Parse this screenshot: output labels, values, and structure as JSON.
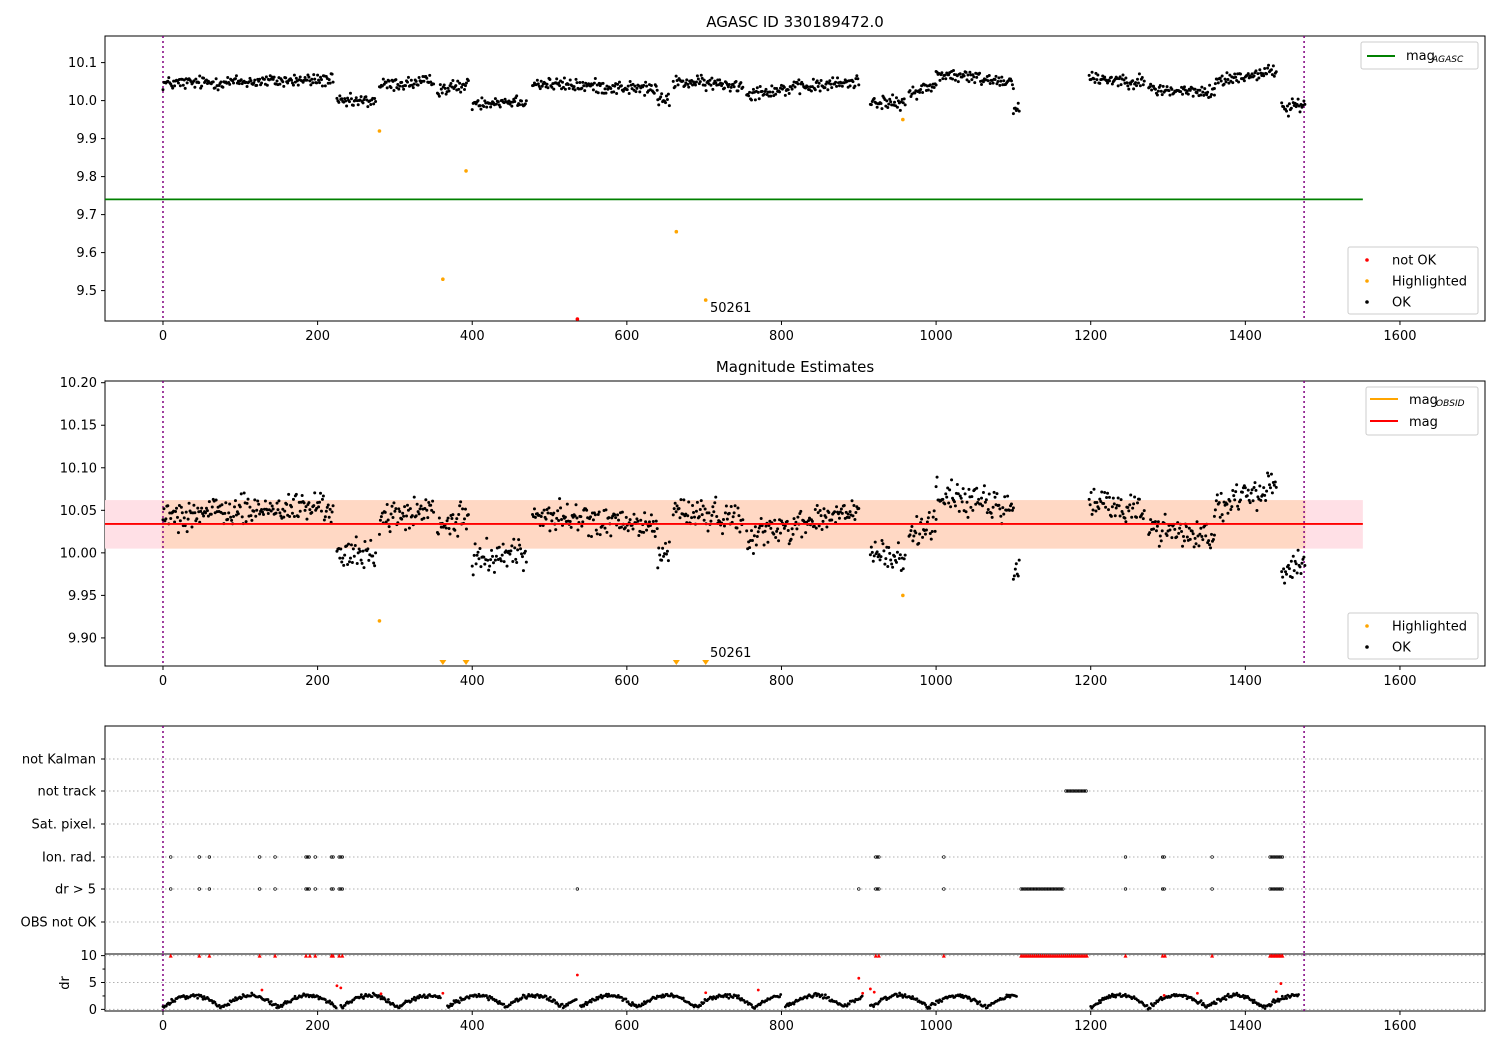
{
  "chart_data": [
    {
      "type": "scatter",
      "title": "AGASC ID 330189472.0",
      "xlim": [
        -75,
        1710
      ],
      "ylim": [
        9.42,
        10.17
      ],
      "xticks": [
        0,
        200,
        400,
        600,
        800,
        1000,
        1200,
        1400,
        1600
      ],
      "yticks": [
        9.5,
        9.6,
        9.7,
        9.8,
        9.9,
        10.0,
        10.1
      ],
      "ytick_labels": [
        "9.5",
        "9.6",
        "9.7",
        "9.8",
        "9.9",
        "10.0",
        "10.1"
      ],
      "vlines": [
        0,
        1476
      ],
      "annotation": {
        "text": "50261",
        "x": 705,
        "y": 9.455
      },
      "lines": [
        {
          "name": "mag_AGASC",
          "y": 9.74,
          "x": [
            -75,
            1552
          ],
          "color": "#008000"
        }
      ],
      "series": [
        {
          "name": "not OK",
          "color": "#ff0000",
          "points": [
            [
              536,
              9.425
            ]
          ]
        },
        {
          "name": "Highlighted",
          "color": "#ffa500",
          "points": [
            [
              280,
              9.92
            ],
            [
              362,
              9.53
            ],
            [
              392,
              9.815
            ],
            [
              664,
              9.655
            ],
            [
              702,
              9.475
            ],
            [
              957,
              9.95
            ]
          ]
        },
        {
          "name": "OK",
          "color": "#000000",
          "points": "generated"
        }
      ],
      "legends": [
        {
          "position": "top-right",
          "entries": [
            {
              "label": "mag",
              "sub": "AGASC",
              "kind": "line",
              "color": "#008000"
            }
          ]
        },
        {
          "position": "bottom-right",
          "entries": [
            {
              "label": "not OK",
              "kind": "dot",
              "color": "#ff0000"
            },
            {
              "label": "Highlighted",
              "kind": "dot",
              "color": "#ffa500"
            },
            {
              "label": "OK",
              "kind": "dot",
              "color": "#000000"
            }
          ]
        }
      ]
    },
    {
      "type": "scatter",
      "title": "Magnitude Estimates",
      "xlim": [
        -75,
        1710
      ],
      "ylim": [
        9.867,
        10.202
      ],
      "xticks": [
        0,
        200,
        400,
        600,
        800,
        1000,
        1200,
        1400,
        1600
      ],
      "yticks": [
        9.9,
        9.95,
        10.0,
        10.05,
        10.1,
        10.15,
        10.2
      ],
      "ytick_labels": [
        "9.90",
        "9.95",
        "10.00",
        "10.05",
        "10.10",
        "10.15",
        "10.20"
      ],
      "vlines": [
        0,
        1476
      ],
      "annotation": {
        "text": "50261",
        "x": 705,
        "y": 9.878
      },
      "band": {
        "y_low": 10.005,
        "y_high": 10.062,
        "x": [
          -75,
          1552
        ],
        "color_outer": "#ffe0e6",
        "color_inner": "#ffd8c4",
        "inner_x": [
          -2,
          1478
        ]
      },
      "lines": [
        {
          "name": "mag",
          "y": 10.034,
          "x": [
            -75,
            1552
          ],
          "color": "#ff0000"
        }
      ],
      "series": [
        {
          "name": "Highlighted",
          "color": "#ffa500",
          "points": [
            [
              280,
              9.92
            ],
            [
              957,
              9.95
            ]
          ]
        },
        {
          "name": "Highlighted (off-scale)",
          "color": "#ffa500",
          "marker": "triangle-down",
          "points": [
            [
              362,
              9.867
            ],
            [
              392,
              9.867
            ],
            [
              664,
              9.867
            ],
            [
              702,
              9.867
            ]
          ]
        },
        {
          "name": "OK",
          "color": "#000000",
          "points": "generated"
        }
      ],
      "legends": [
        {
          "position": "top-right",
          "entries": [
            {
              "label": "mag",
              "sub": "OBSID",
              "kind": "line",
              "color": "#ffa500"
            },
            {
              "label": "mag",
              "kind": "line",
              "color": "#ff0000"
            }
          ]
        },
        {
          "position": "bottom-right",
          "entries": [
            {
              "label": "Highlighted",
              "kind": "dot",
              "color": "#ffa500"
            },
            {
              "label": "OK",
              "kind": "dot",
              "color": "#000000"
            }
          ]
        }
      ]
    },
    {
      "type": "scatter",
      "title": "",
      "xlim": [
        -75,
        1710
      ],
      "vlines": [
        0,
        1476
      ],
      "categories": [
        "not Kalman",
        "not track",
        "Sat. pixel.",
        "Ion. rad.",
        "dr > 5",
        "OBS not OK"
      ],
      "flag_points": {
        "not Kalman": [],
        "not track": [
          [
            1168,
            1195
          ]
        ],
        "Sat. pixel.": [],
        "Ion. rad.": [
          [
            10
          ],
          [
            47
          ],
          [
            60
          ],
          [
            125
          ],
          [
            145
          ],
          [
            185,
            190
          ],
          [
            197
          ],
          [
            218,
            220
          ],
          [
            228,
            232
          ],
          [
            922,
            926
          ],
          [
            1010
          ],
          [
            1245
          ],
          [
            1293,
            1296
          ],
          [
            1357
          ],
          [
            1432,
            1448
          ]
        ],
        "dr > 5": [
          [
            10
          ],
          [
            47
          ],
          [
            60
          ],
          [
            125
          ],
          [
            145
          ],
          [
            185,
            190
          ],
          [
            197
          ],
          [
            218,
            220
          ],
          [
            228,
            232
          ],
          [
            536
          ],
          [
            900
          ],
          [
            922,
            926
          ],
          [
            1010
          ],
          [
            1110,
            1165
          ],
          [
            1245
          ],
          [
            1293,
            1296
          ],
          [
            1357
          ],
          [
            1432,
            1448
          ]
        ],
        "OBS not OK": []
      }
    },
    {
      "type": "scatter",
      "title": "",
      "ylabel": "dr",
      "xlim": [
        -75,
        1710
      ],
      "ylim": [
        -0.3,
        10.3
      ],
      "xticks": [
        0,
        200,
        400,
        600,
        800,
        1000,
        1200,
        1400,
        1600
      ],
      "yticks": [
        0,
        5,
        10
      ],
      "ytick_labels": [
        "0",
        "5",
        "10"
      ],
      "vlines": [
        0,
        1476
      ],
      "series": [
        {
          "name": "dr",
          "color": "#000000",
          "points": "generated"
        },
        {
          "name": "dr > 5 (capped)",
          "color": "#ff0000",
          "marker": "triangle",
          "x": [
            10,
            47,
            60,
            125,
            145,
            185,
            190,
            197,
            218,
            220,
            228,
            232,
            922,
            926,
            1010,
            1245,
            1293,
            1296,
            1357
          ]
        },
        {
          "name": "dr highlighted",
          "color": "#ff0000",
          "points": [
            [
              536,
              6.4
            ],
            [
              900,
              5.8
            ],
            [
              128,
              3.6
            ],
            [
              225,
              4.4
            ],
            [
              230,
              4.0
            ],
            [
              282,
              2.9
            ],
            [
              362,
              3.0
            ],
            [
              702,
              3.1
            ],
            [
              770,
              3.6
            ],
            [
              905,
              3.0
            ],
            [
              915,
              3.8
            ],
            [
              920,
              3.2
            ],
            [
              1295,
              2.6
            ],
            [
              1338,
              3.0
            ],
            [
              1440,
              3.3
            ],
            [
              1446,
              4.8
            ]
          ]
        }
      ]
    }
  ]
}
